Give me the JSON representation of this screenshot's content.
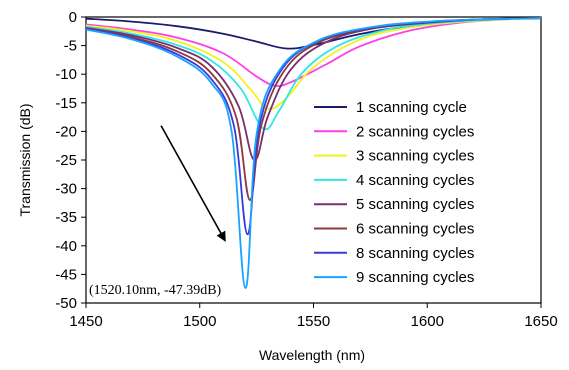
{
  "chart_data": {
    "type": "line",
    "xlabel": "Wavelength (nm)",
    "ylabel": "Transmission (dB)",
    "xlim": [
      1450,
      1650
    ],
    "ylim": [
      -50,
      0
    ],
    "xticks": [
      1450,
      1500,
      1550,
      1600,
      1650
    ],
    "yticks": [
      0,
      -5,
      -10,
      -15,
      -20,
      -25,
      -30,
      -35,
      -40,
      -45,
      -50
    ],
    "grid": false,
    "legend_position": "right",
    "annotation": "(1520.10nm, -47.39dB)",
    "arrow": {
      "from": [
        1483,
        -19
      ],
      "to": [
        1511,
        -39
      ]
    },
    "series": [
      {
        "name": "1 scanning cycle",
        "color": "#1c1c6e",
        "center": 1538,
        "depth": -5.5,
        "x": [
          1450,
          1470,
          1490,
          1510,
          1525,
          1538,
          1550,
          1570,
          1590,
          1610,
          1630,
          1650
        ],
        "y": [
          -0.3,
          -0.8,
          -1.6,
          -2.9,
          -4.3,
          -5.5,
          -4.9,
          -3.0,
          -1.7,
          -0.9,
          -0.4,
          -0.2
        ]
      },
      {
        "name": "2 scanning cycles",
        "color": "#ff3ee8",
        "center": 1533,
        "depth": -12,
        "x": [
          1450,
          1470,
          1490,
          1510,
          1525,
          1533,
          1540,
          1555,
          1570,
          1590,
          1610,
          1630,
          1650
        ],
        "y": [
          -1.3,
          -2.2,
          -3.6,
          -6.3,
          -10.4,
          -12.0,
          -11.4,
          -8.4,
          -5.2,
          -2.6,
          -1.2,
          -0.5,
          -0.2
        ]
      },
      {
        "name": "3 scanning cycles",
        "color": "#f2f21c",
        "center": 1530,
        "depth": -16,
        "x": [
          1450,
          1470,
          1490,
          1510,
          1522,
          1530,
          1538,
          1550,
          1570,
          1590,
          1610,
          1630,
          1650
        ],
        "y": [
          -1.5,
          -2.5,
          -4.2,
          -7.8,
          -12.5,
          -16.0,
          -14.2,
          -8.8,
          -4.0,
          -2.0,
          -1.0,
          -0.5,
          -0.2
        ]
      },
      {
        "name": "4 scanning cycles",
        "color": "#33e6e6",
        "center": 1528,
        "depth": -19.5,
        "x": [
          1450,
          1470,
          1490,
          1505,
          1518,
          1528,
          1535,
          1545,
          1560,
          1580,
          1600,
          1625,
          1650
        ],
        "y": [
          -1.7,
          -2.9,
          -4.9,
          -7.6,
          -12.5,
          -19.5,
          -16.3,
          -9.8,
          -5.2,
          -2.4,
          -1.2,
          -0.5,
          -0.2
        ]
      },
      {
        "name": "5 scanning cycles",
        "color": "#7a2e6f",
        "center": 1524,
        "depth": -25,
        "x": [
          1450,
          1470,
          1490,
          1505,
          1517,
          1524,
          1530,
          1540,
          1555,
          1575,
          1600,
          1625,
          1650
        ],
        "y": [
          -1.9,
          -3.2,
          -5.4,
          -8.6,
          -15.5,
          -25.0,
          -17.3,
          -9.2,
          -4.5,
          -2.1,
          -1.0,
          -0.4,
          -0.2
        ]
      },
      {
        "name": "6 scanning cycles",
        "color": "#8a3a3a",
        "center": 1522,
        "depth": -32,
        "x": [
          1450,
          1470,
          1490,
          1505,
          1516,
          1522,
          1527,
          1537,
          1552,
          1575,
          1600,
          1625,
          1650
        ],
        "y": [
          -2.0,
          -3.5,
          -6.0,
          -9.8,
          -17.5,
          -32.0,
          -19.0,
          -9.5,
          -4.5,
          -2.0,
          -0.9,
          -0.4,
          -0.2
        ]
      },
      {
        "name": "8 scanning cycles",
        "color": "#3a3adc",
        "center": 1521,
        "depth": -38,
        "x": [
          1450,
          1470,
          1490,
          1505,
          1515,
          1521,
          1526,
          1536,
          1552,
          1575,
          1600,
          1625,
          1650
        ],
        "y": [
          -2.1,
          -3.7,
          -6.5,
          -10.8,
          -19.0,
          -38.0,
          -19.5,
          -9.2,
          -4.2,
          -1.9,
          -0.9,
          -0.4,
          -0.2
        ]
      },
      {
        "name": "9 scanning cycles",
        "color": "#1aa3ff",
        "center": 1520.1,
        "depth": -47.39,
        "x": [
          1450,
          1470,
          1490,
          1505,
          1514,
          1520.1,
          1525,
          1535,
          1552,
          1575,
          1600,
          1625,
          1650
        ],
        "y": [
          -2.2,
          -3.9,
          -6.9,
          -11.5,
          -20.0,
          -47.39,
          -20.5,
          -9.3,
          -4.1,
          -1.8,
          -0.8,
          -0.4,
          -0.2
        ]
      }
    ]
  }
}
